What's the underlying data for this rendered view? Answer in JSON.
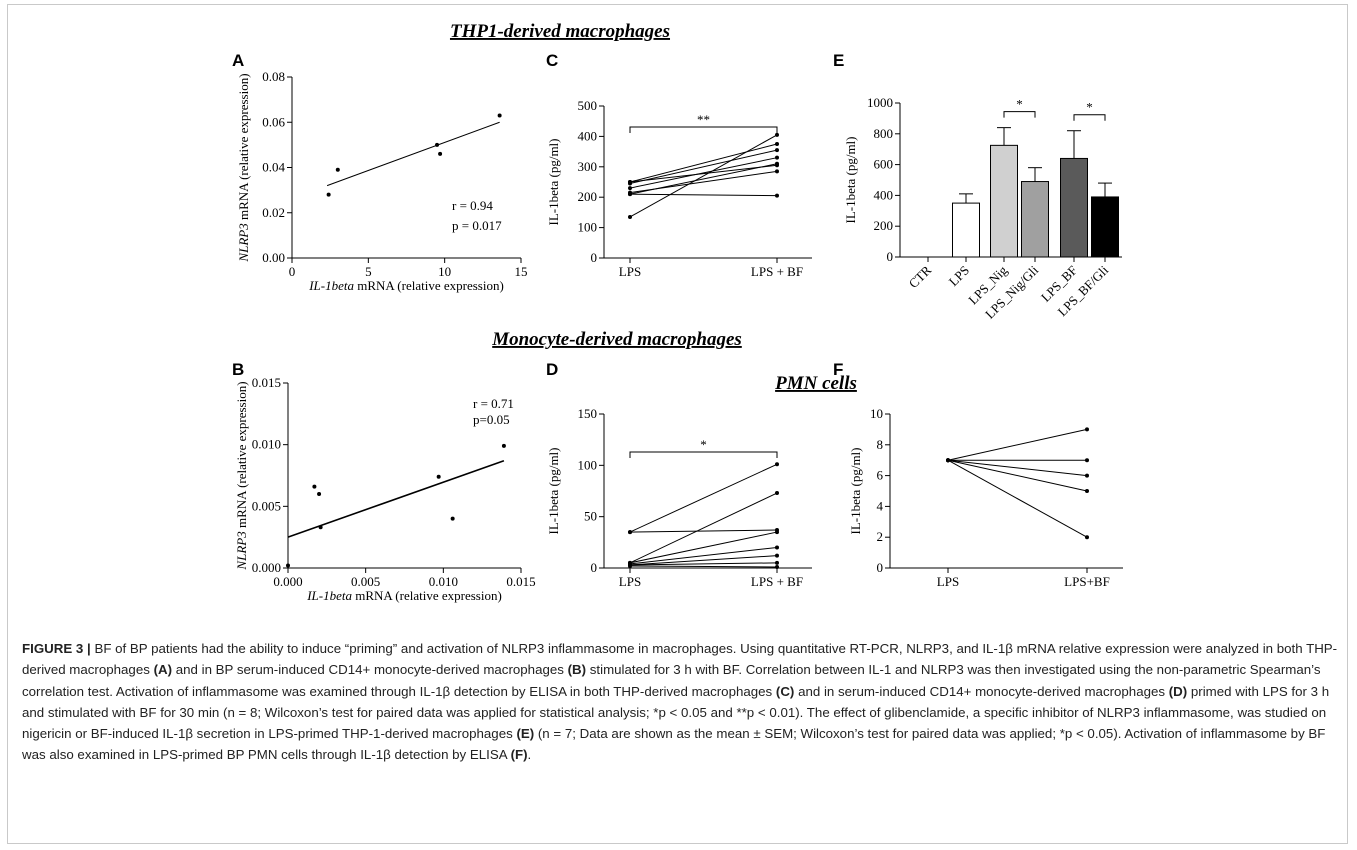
{
  "headings": {
    "thp1": "THP1-derived macrophages",
    "monocyte": "Monocyte-derived macrophages",
    "pmn": "PMN cells"
  },
  "chart_data": [
    {
      "panel": "A",
      "type": "scatter",
      "xlabel_gene": "IL-1beta",
      "xlabel_rest": " mRNA (relative expression)",
      "ylabel_gene": "NLRP3",
      "ylabel_rest": " mRNA (relative expression)",
      "xlim": [
        0,
        15
      ],
      "ylim": [
        0,
        0.08
      ],
      "xticks": [
        "0",
        "5",
        "10",
        "15"
      ],
      "yticks": [
        "0.00",
        "0.02",
        "0.04",
        "0.06",
        "0.08"
      ],
      "points": [
        [
          2.4,
          0.028
        ],
        [
          3.0,
          0.039
        ],
        [
          9.5,
          0.05
        ],
        [
          9.7,
          0.046
        ],
        [
          13.6,
          0.063
        ]
      ],
      "fit": [
        [
          2.3,
          0.032
        ],
        [
          13.6,
          0.06
        ]
      ],
      "stat_r": "r = 0.94",
      "stat_p": "p = 0.017"
    },
    {
      "panel": "B",
      "type": "scatter",
      "xlabel_gene": "IL-1beta",
      "xlabel_rest": " mRNA (relative expression)",
      "ylabel_gene": "NLRP3",
      "ylabel_rest": " mRNA (relative expression)",
      "xlim": [
        0,
        0.015
      ],
      "ylim": [
        0,
        0.015
      ],
      "xticks": [
        "0.000",
        "0.005",
        "0.010",
        "0.015"
      ],
      "yticks": [
        "0.000",
        "0.005",
        "0.010",
        "0.015"
      ],
      "points": [
        [
          0.0,
          0.0002
        ],
        [
          0.0017,
          0.0066
        ],
        [
          0.002,
          0.006
        ],
        [
          0.0021,
          0.0033
        ],
        [
          0.0097,
          0.0074
        ],
        [
          0.0106,
          0.004
        ],
        [
          0.0139,
          0.0099
        ]
      ],
      "fit": [
        [
          0.0,
          0.0025
        ],
        [
          0.0139,
          0.0087
        ]
      ],
      "stat_r": "r = 0.71",
      "stat_p": "p=0.05"
    },
    {
      "panel": "C",
      "type": "line",
      "categories": [
        "LPS",
        "LPS + BF"
      ],
      "ylabel": "IL-1beta (pg/ml)",
      "ylim": [
        0,
        500
      ],
      "yticks": [
        "0",
        "100",
        "200",
        "300",
        "400",
        "500"
      ],
      "pairs": [
        [
          135,
          405
        ],
        [
          250,
          375
        ],
        [
          245,
          355
        ],
        [
          230,
          330
        ],
        [
          210,
          310
        ],
        [
          250,
          305
        ],
        [
          215,
          285
        ],
        [
          210,
          205
        ]
      ],
      "significance": "**"
    },
    {
      "panel": "D",
      "type": "line",
      "categories": [
        "LPS",
        "LPS + BF"
      ],
      "ylabel": "IL-1beta (pg/ml)",
      "ylim": [
        0,
        150
      ],
      "yticks": [
        "0",
        "50",
        "100",
        "150"
      ],
      "pairs": [
        [
          35,
          101
        ],
        [
          35,
          37
        ],
        [
          5,
          73
        ],
        [
          5,
          35
        ],
        [
          4,
          20
        ],
        [
          3,
          12
        ],
        [
          3,
          5
        ],
        [
          2,
          1
        ]
      ],
      "significance": "*"
    },
    {
      "panel": "E",
      "type": "bar",
      "categories": [
        "CTR",
        "LPS",
        "LPS_Nig",
        "LPS_Nig/Gli",
        "LPS_BF",
        "LPS_BF/Gli"
      ],
      "values": [
        0,
        350,
        725,
        490,
        640,
        390
      ],
      "errors": [
        0,
        60,
        115,
        90,
        180,
        90
      ],
      "colors": [
        "#ffffff",
        "#ffffff",
        "#d0d0d0",
        "#a0a0a0",
        "#5a5a5a",
        "#000000"
      ],
      "ylabel": "IL-1beta (pg/ml)",
      "ylim": [
        0,
        1000
      ],
      "yticks": [
        "0",
        "200",
        "400",
        "600",
        "800",
        "1000"
      ],
      "brackets": [
        {
          "from": 2,
          "to": 3,
          "label": "*"
        },
        {
          "from": 4,
          "to": 5,
          "label": "*"
        }
      ]
    },
    {
      "panel": "F",
      "type": "line",
      "categories": [
        "LPS",
        "LPS+BF"
      ],
      "ylabel": "IL-1beta (pg/ml)",
      "ylim": [
        0,
        10
      ],
      "yticks": [
        "0",
        "2",
        "4",
        "6",
        "8",
        "10"
      ],
      "pairs": [
        [
          7,
          9
        ],
        [
          7,
          7
        ],
        [
          7,
          6
        ],
        [
          7,
          5
        ],
        [
          7,
          2
        ]
      ]
    }
  ],
  "caption": {
    "head": "FIGURE 3 |",
    "parts": [
      " BF of BP patients had the ability to induce “priming” and activation of NLRP3 inflammasome in macrophages. Using quantitative RT-PCR, NLRP3, and IL-1β mRNA relative expression were analyzed in both THP-derived macrophages ",
      "(A)",
      " and in BP serum-induced CD14+ monocyte-derived macrophages ",
      "(B)",
      " stimulated for 3 h with BF. Correlation between IL-1 and NLRP3 was then investigated using the non-parametric Spearman’s correlation test. Activation of inflammasome was examined through IL-1β detection by ELISA in both THP-derived macrophages ",
      "(C)",
      " and in serum-induced CD14+ monocyte-derived macrophages ",
      "(D)",
      " primed with LPS for 3 h and stimulated with BF for 30 min (n = 8; Wilcoxon’s test for paired data was applied for statistical analysis; *p < 0.05 and **p < 0.01). The effect of glibenclamide, a specific inhibitor of NLRP3 inflammasome, was studied on nigericin or BF-induced IL-1β secretion in LPS-primed THP-1-derived macrophages ",
      "(E)",
      " (n = 7; Data are shown as the mean ± SEM; Wilcoxon’s test for paired data was applied; *p < 0.05). Activation of inflammasome by BF was also examined in LPS-primed BP PMN cells through IL-1β detection by ELISA ",
      "(F)",
      "."
    ]
  }
}
